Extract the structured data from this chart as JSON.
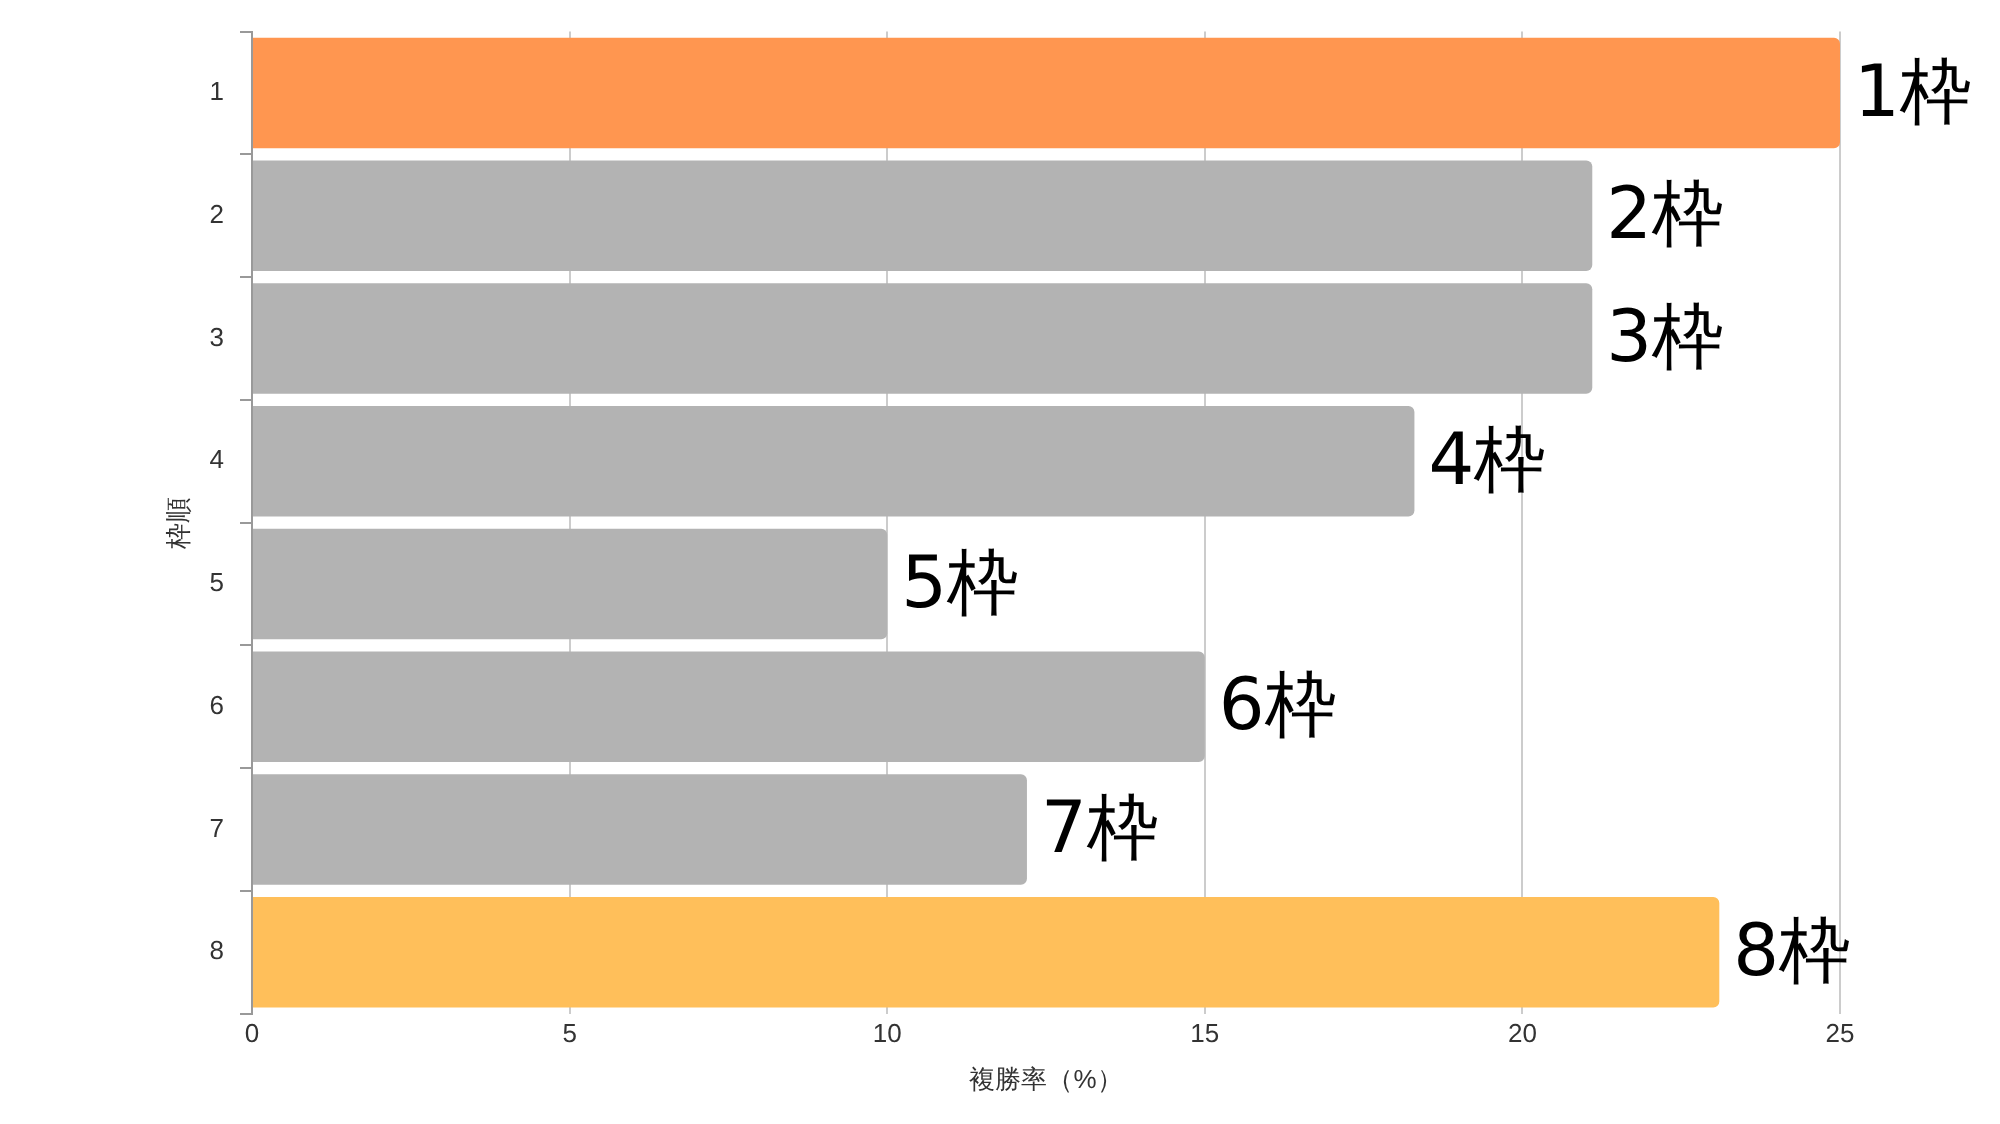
{
  "chart_data": {
    "type": "bar",
    "orientation": "horizontal",
    "xlabel": "複勝率（%）",
    "ylabel": "枠順",
    "categories": [
      "1",
      "2",
      "3",
      "4",
      "5",
      "6",
      "7",
      "8"
    ],
    "values": [
      25.0,
      21.1,
      21.1,
      18.3,
      10.0,
      15.0,
      12.2,
      23.1
    ],
    "colors": [
      "#ff9650",
      "#b3b3b3",
      "#b3b3b3",
      "#b3b3b3",
      "#b3b3b3",
      "#b3b3b3",
      "#b3b3b3",
      "#ffbf5a"
    ],
    "xlim": [
      0,
      25
    ],
    "xticks": [
      0,
      5,
      10,
      15,
      20,
      25
    ],
    "grid": "x",
    "legend": false,
    "annotations": [
      {
        "text": "1枠",
        "x": 25.0,
        "y": "1"
      },
      {
        "text": "2枠",
        "x": 21.1,
        "y": "2"
      },
      {
        "text": "3枠",
        "x": 21.1,
        "y": "3"
      },
      {
        "text": "4枠",
        "x": 18.3,
        "y": "4"
      },
      {
        "text": "5枠",
        "x": 10.0,
        "y": "5"
      },
      {
        "text": "6枠",
        "x": 15.0,
        "y": "6"
      },
      {
        "text": "7枠",
        "x": 12.2,
        "y": "7"
      },
      {
        "text": "8枠",
        "x": 23.1,
        "y": "8"
      }
    ]
  }
}
